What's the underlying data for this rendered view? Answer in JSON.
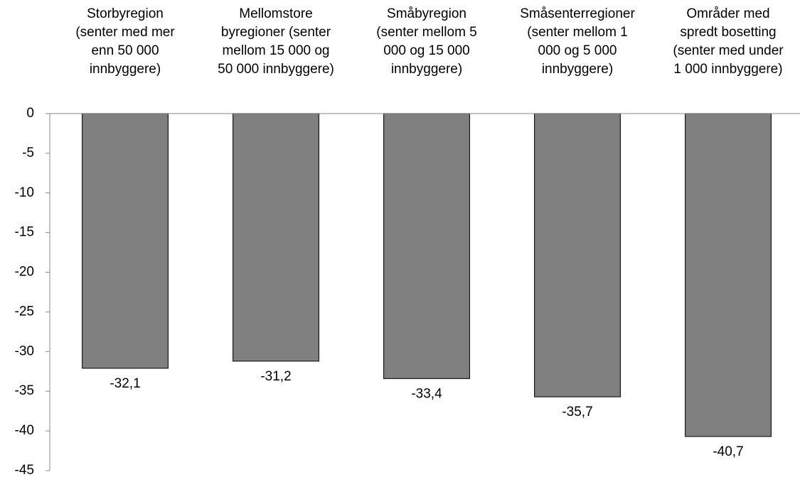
{
  "chart_data": {
    "type": "bar",
    "categories": [
      "Storbyregion\n(senter med mer\nenn 50 000\ninnbyggere)",
      "Mellomstore\nbyregioner  (senter\nmellom 15 000 og\n50 000 innbyggere)",
      "Småbyregion\n(senter mellom 5\n000 og 15 000\ninnbyggere)",
      "Småsenterregioner\n(senter mellom 1\n000 og 5 000\ninnbyggere)",
      "Områder med\nspredt bosetting\n(senter med under\n1 000 innbyggere)"
    ],
    "values": [
      -32.1,
      -31.2,
      -33.4,
      -35.7,
      -40.7
    ],
    "value_labels": [
      "-32,1",
      "-31,2",
      "-33,4",
      "-35,7",
      "-40,7"
    ],
    "color": "#808080",
    "ylim": [
      -45,
      0
    ],
    "yticks": [
      0,
      -5,
      -10,
      -15,
      -20,
      -25,
      -30,
      -35,
      -40,
      -45
    ]
  }
}
